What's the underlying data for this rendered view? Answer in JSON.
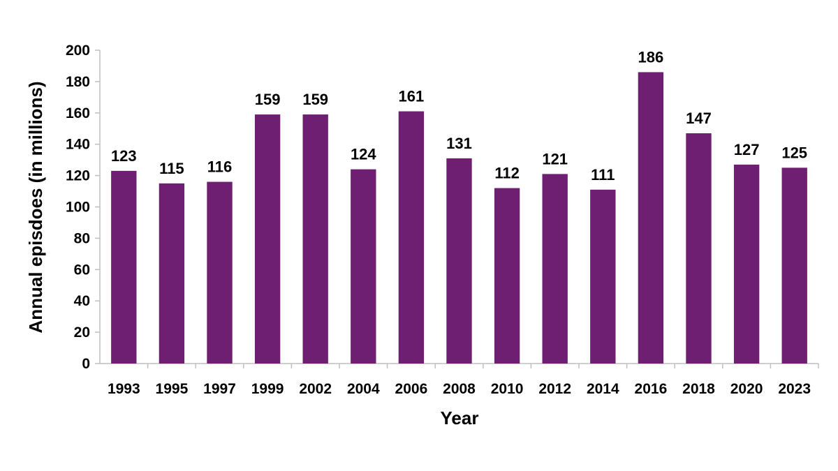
{
  "chart_data": {
    "type": "bar",
    "title": "",
    "xlabel": "Year",
    "ylabel": "Annual episdoes (in millions)",
    "ylim": [
      0,
      200
    ],
    "yticks": [
      0,
      20,
      40,
      60,
      80,
      100,
      120,
      140,
      160,
      180,
      200
    ],
    "categories": [
      "1993",
      "1995",
      "1997",
      "1999",
      "2002",
      "2004",
      "2006",
      "2008",
      "2010",
      "2012",
      "2014",
      "2016",
      "2018",
      "2020",
      "2023"
    ],
    "values": [
      123,
      115,
      116,
      159,
      159,
      124,
      161,
      131,
      112,
      121,
      111,
      186,
      147,
      127,
      125
    ],
    "bar_color": "#6e1f72",
    "axis_color": "#bfbfbf",
    "grid": false,
    "data_labels": true
  }
}
